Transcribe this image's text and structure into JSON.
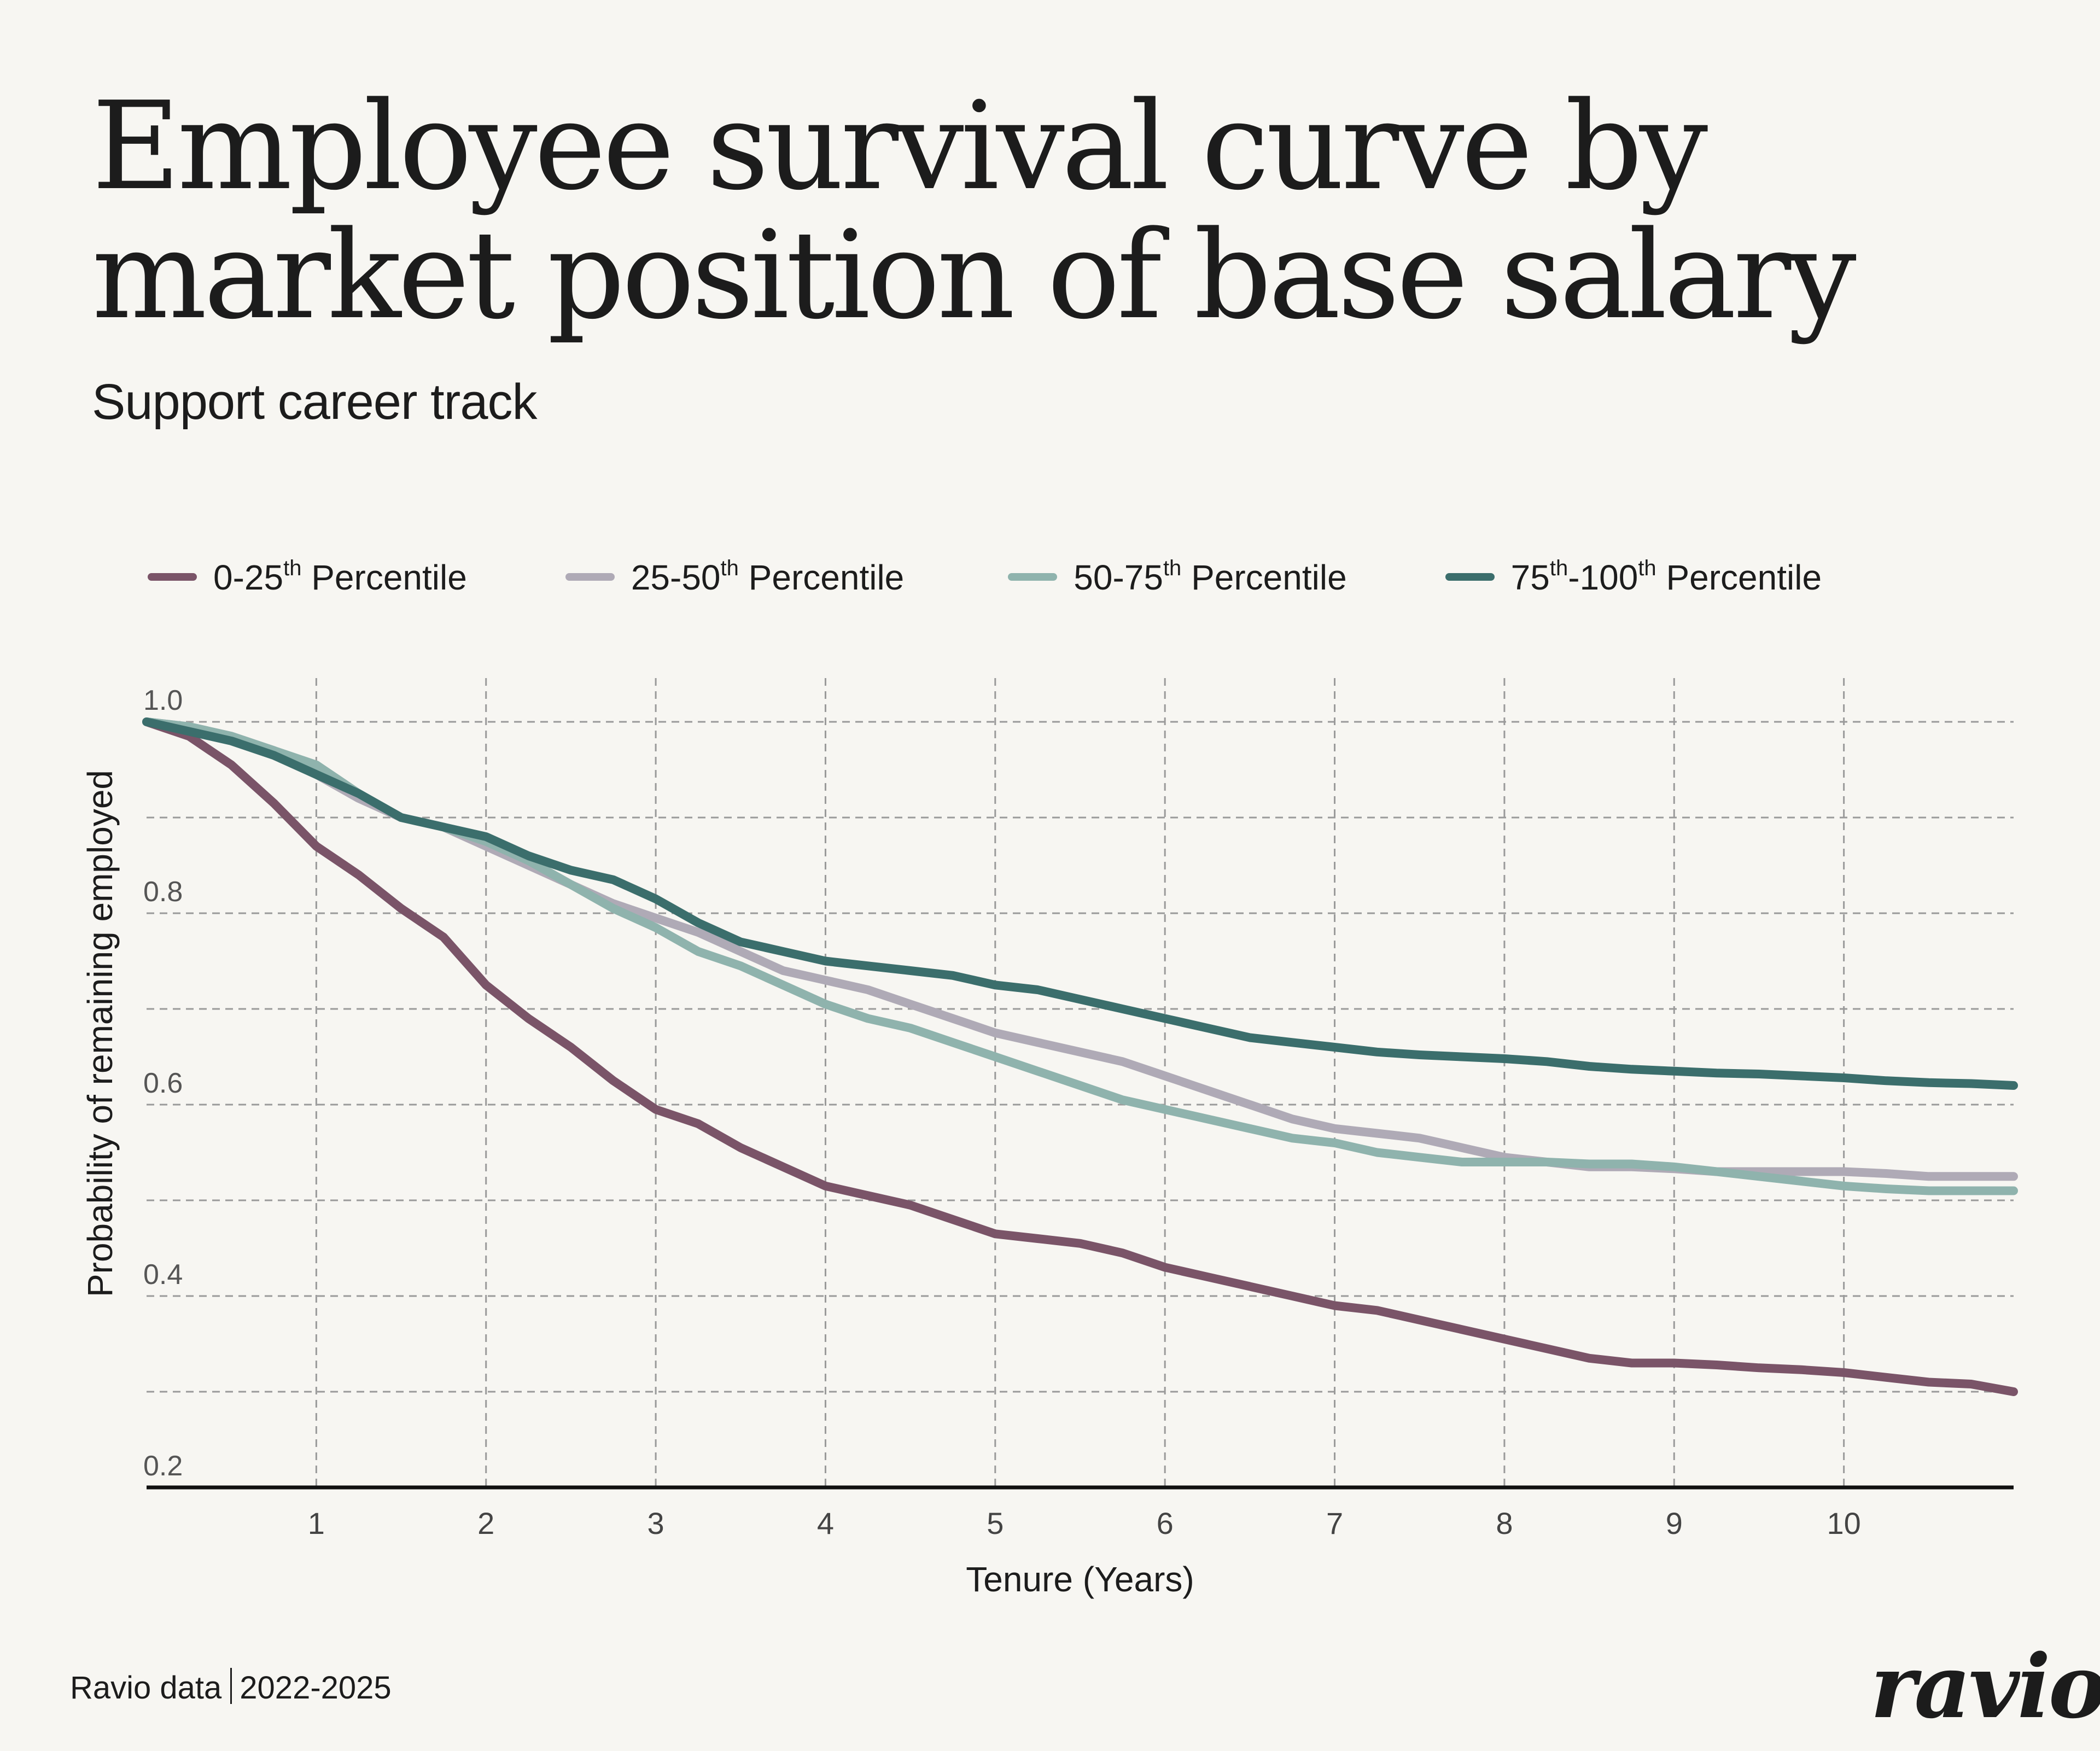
{
  "title": "Employee survival curve by market position of base salary",
  "subtitle": "Support career track",
  "footer": {
    "source": "Ravio data",
    "years": "2022-2025",
    "logo": "ravio"
  },
  "chart_data": {
    "type": "line",
    "title": "Employee survival curve by market position of base salary",
    "subtitle": "Support career track",
    "xlabel": "Tenure (Years)",
    "ylabel": "Probability of remaining employed",
    "xlim": [
      0,
      11
    ],
    "ylim": [
      0.2,
      1.0
    ],
    "x_ticks": [
      1,
      2,
      3,
      4,
      5,
      6,
      7,
      8,
      9,
      10
    ],
    "y_ticks": [
      "0.2",
      "0.4",
      "0.6",
      "0.8",
      "1.0"
    ],
    "grid": true,
    "legend_position": "top",
    "x": [
      0,
      0.25,
      0.5,
      0.75,
      1,
      1.25,
      1.5,
      1.75,
      2,
      2.25,
      2.5,
      2.75,
      3,
      3.25,
      3.5,
      3.75,
      4,
      4.25,
      4.5,
      4.75,
      5,
      5.25,
      5.5,
      5.75,
      6,
      6.25,
      6.5,
      6.75,
      7,
      7.25,
      7.5,
      7.75,
      8,
      8.25,
      8.5,
      8.75,
      9,
      9.25,
      9.5,
      9.75,
      10,
      10.25,
      10.5,
      10.75,
      11
    ],
    "series": [
      {
        "name": "0-25th Percentile",
        "label": "0-25",
        "sup": "th",
        "label_after": " Percentile",
        "color": "#7a5468",
        "values": [
          1.0,
          0.985,
          0.955,
          0.915,
          0.87,
          0.84,
          0.805,
          0.775,
          0.725,
          0.69,
          0.66,
          0.625,
          0.595,
          0.58,
          0.555,
          0.535,
          0.515,
          0.505,
          0.495,
          0.48,
          0.465,
          0.46,
          0.455,
          0.445,
          0.43,
          0.42,
          0.41,
          0.4,
          0.39,
          0.385,
          0.375,
          0.365,
          0.355,
          0.345,
          0.335,
          0.33,
          0.33,
          0.328,
          0.325,
          0.323,
          0.32,
          0.315,
          0.31,
          0.308,
          0.3
        ]
      },
      {
        "name": "25-50th Percentile",
        "label": "25-50",
        "sup": "th",
        "label_after": " Percentile",
        "color": "#afaab6",
        "values": [
          1.0,
          0.995,
          0.985,
          0.97,
          0.945,
          0.92,
          0.9,
          0.89,
          0.87,
          0.85,
          0.83,
          0.81,
          0.795,
          0.78,
          0.76,
          0.74,
          0.73,
          0.72,
          0.705,
          0.69,
          0.675,
          0.665,
          0.655,
          0.645,
          0.63,
          0.615,
          0.6,
          0.585,
          0.575,
          0.57,
          0.565,
          0.555,
          0.545,
          0.54,
          0.535,
          0.535,
          0.533,
          0.53,
          0.53,
          0.53,
          0.53,
          0.528,
          0.525,
          0.525,
          0.525
        ]
      },
      {
        "name": "50-75th Percentile",
        "label": "50-75",
        "sup": "th",
        "label_after": " Percentile",
        "color": "#8fb3ad",
        "values": [
          1.0,
          0.995,
          0.985,
          0.97,
          0.955,
          0.925,
          0.9,
          0.89,
          0.875,
          0.855,
          0.83,
          0.805,
          0.785,
          0.76,
          0.745,
          0.725,
          0.705,
          0.69,
          0.68,
          0.665,
          0.65,
          0.635,
          0.62,
          0.605,
          0.595,
          0.585,
          0.575,
          0.565,
          0.56,
          0.55,
          0.545,
          0.54,
          0.54,
          0.54,
          0.538,
          0.538,
          0.535,
          0.53,
          0.525,
          0.52,
          0.515,
          0.512,
          0.51,
          0.51,
          0.51
        ]
      },
      {
        "name": "75th-100th Percentile",
        "label": "75",
        "sup": "th",
        "label_mid": "-100",
        "sup2": "th",
        "label_after": " Percentile",
        "color": "#3b6e6c",
        "values": [
          1.0,
          0.99,
          0.98,
          0.965,
          0.945,
          0.925,
          0.9,
          0.89,
          0.88,
          0.86,
          0.845,
          0.835,
          0.815,
          0.79,
          0.77,
          0.76,
          0.75,
          0.745,
          0.74,
          0.735,
          0.725,
          0.72,
          0.71,
          0.7,
          0.69,
          0.68,
          0.67,
          0.665,
          0.66,
          0.655,
          0.652,
          0.65,
          0.648,
          0.645,
          0.64,
          0.637,
          0.635,
          0.633,
          0.632,
          0.63,
          0.628,
          0.625,
          0.623,
          0.622,
          0.62
        ]
      }
    ]
  }
}
